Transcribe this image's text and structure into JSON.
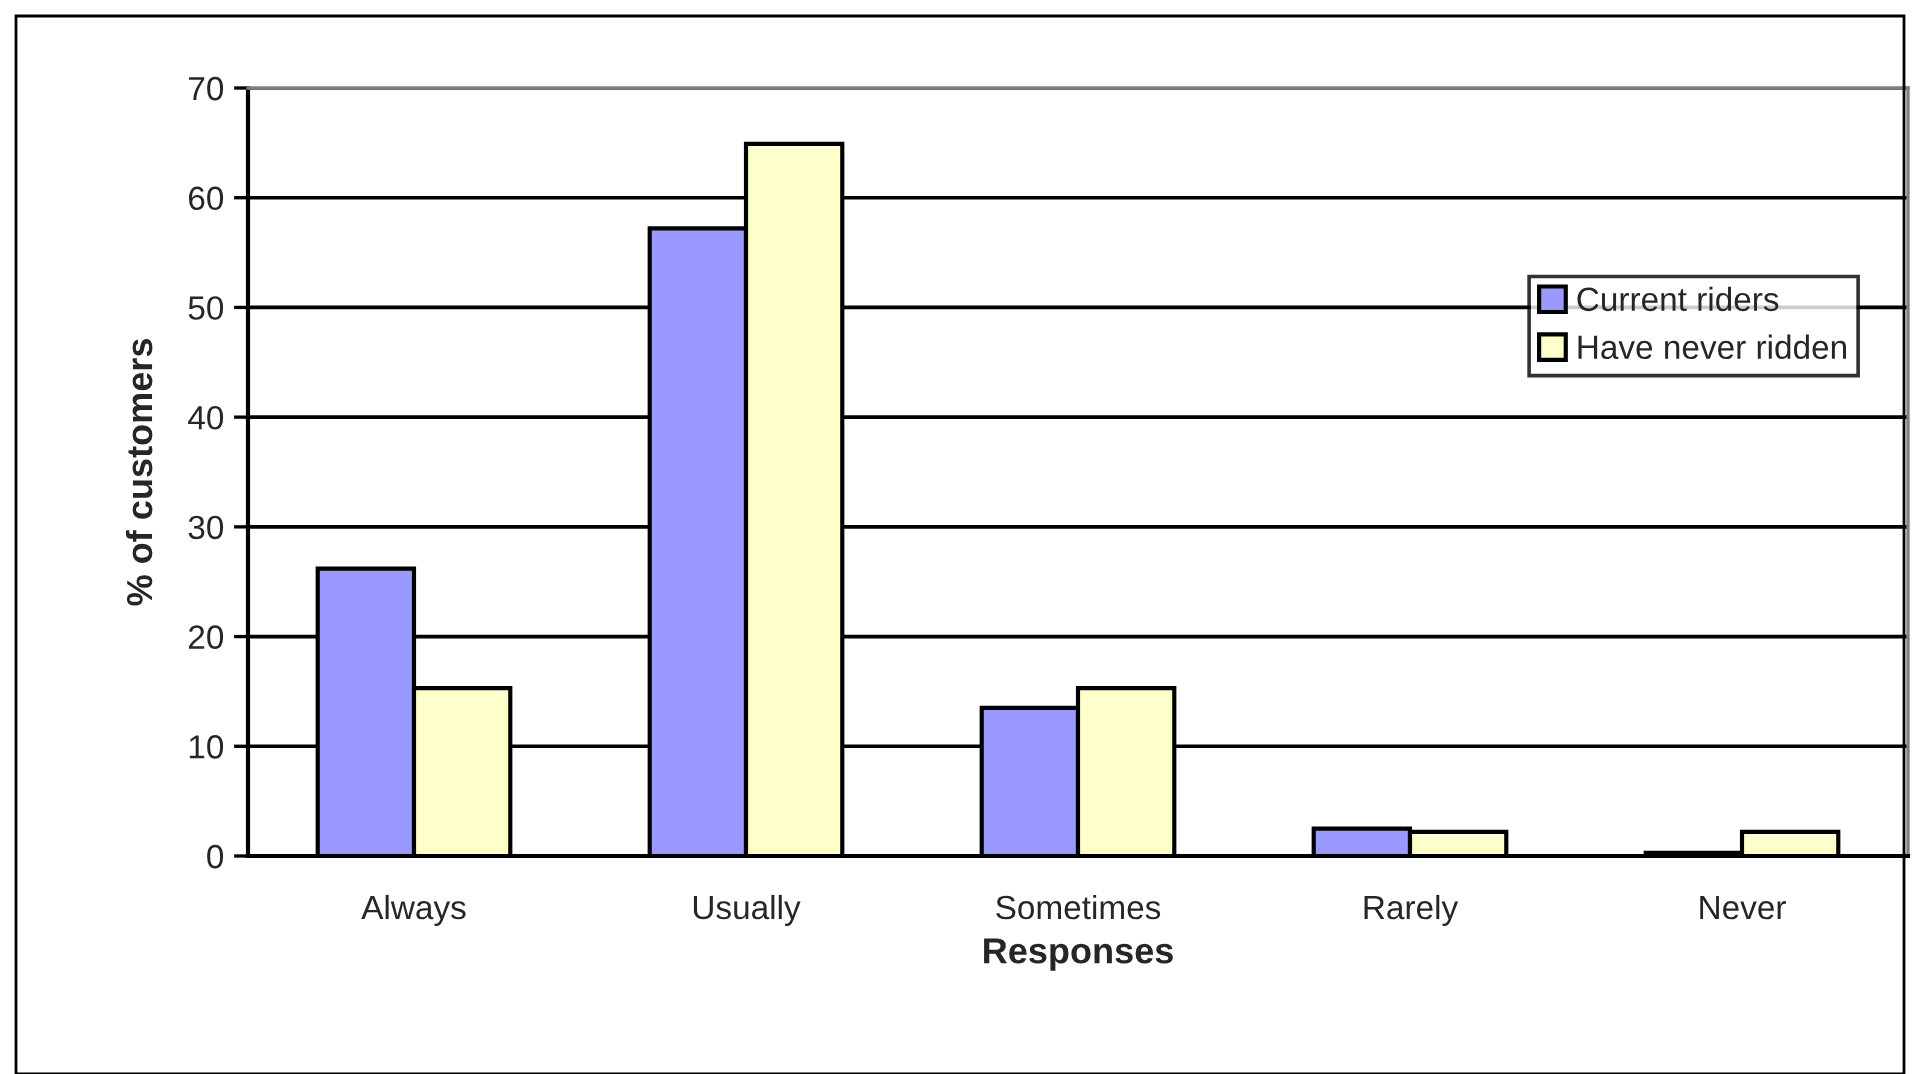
{
  "chart_data": {
    "type": "bar",
    "xlabel": "Responses",
    "ylabel": "% of customers",
    "categories": [
      "Always",
      "Usually",
      "Sometimes",
      "Rarely",
      "Never"
    ],
    "series": [
      {
        "name": "Current riders",
        "color": "#9999ff",
        "values": [
          26.2,
          57.2,
          13.5,
          2.5,
          0.3
        ]
      },
      {
        "name": "Have never ridden",
        "color": "#ffffcc",
        "values": [
          15.3,
          64.9,
          15.3,
          2.2,
          2.2
        ]
      }
    ],
    "ylim": [
      0,
      70
    ],
    "yticks": [
      0,
      10,
      20,
      30,
      40,
      50,
      60,
      70
    ],
    "grid": "y",
    "legend": "right"
  }
}
